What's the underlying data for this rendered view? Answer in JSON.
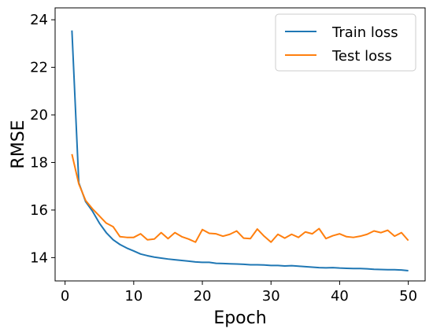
{
  "chart_data": {
    "type": "line",
    "title": "",
    "xlabel": "Epoch",
    "ylabel": "RMSE",
    "xlim": [
      -1.45,
      52.45
    ],
    "ylim": [
      13.02,
      24.5
    ],
    "xticks": [
      0,
      10,
      20,
      30,
      40,
      50
    ],
    "yticks": [
      14,
      16,
      18,
      20,
      22,
      24
    ],
    "grid": false,
    "legend": "top-right",
    "x": [
      1,
      2,
      3,
      4,
      5,
      6,
      7,
      8,
      9,
      10,
      11,
      12,
      13,
      14,
      15,
      16,
      17,
      18,
      19,
      20,
      21,
      22,
      23,
      24,
      25,
      26,
      27,
      28,
      29,
      30,
      31,
      32,
      33,
      34,
      35,
      36,
      37,
      38,
      39,
      40,
      41,
      42,
      43,
      44,
      45,
      46,
      47,
      48,
      49,
      50
    ],
    "series": [
      {
        "name": "Train loss",
        "color": "#1f77b4",
        "values": [
          23.55,
          17.15,
          16.35,
          15.95,
          15.45,
          15.05,
          14.75,
          14.55,
          14.4,
          14.28,
          14.15,
          14.08,
          14.02,
          13.98,
          13.94,
          13.91,
          13.88,
          13.85,
          13.82,
          13.8,
          13.8,
          13.76,
          13.75,
          13.74,
          13.73,
          13.72,
          13.7,
          13.7,
          13.69,
          13.67,
          13.67,
          13.65,
          13.66,
          13.64,
          13.62,
          13.6,
          13.58,
          13.57,
          13.58,
          13.56,
          13.55,
          13.54,
          13.54,
          13.53,
          13.51,
          13.5,
          13.49,
          13.49,
          13.48,
          13.45
        ]
      },
      {
        "name": "Test loss",
        "color": "#ff7f0e",
        "values": [
          18.35,
          17.1,
          16.4,
          16.05,
          15.75,
          15.45,
          15.3,
          14.88,
          14.85,
          14.85,
          15.0,
          14.75,
          14.78,
          15.05,
          14.8,
          15.05,
          14.88,
          14.78,
          14.65,
          15.18,
          15.02,
          15.0,
          14.9,
          14.98,
          15.12,
          14.82,
          14.8,
          15.2,
          14.9,
          14.65,
          14.98,
          14.82,
          14.98,
          14.85,
          15.08,
          15.0,
          15.22,
          14.8,
          14.92,
          15.0,
          14.88,
          14.85,
          14.9,
          14.98,
          15.12,
          15.05,
          15.15,
          14.9,
          15.05,
          14.72
        ]
      }
    ]
  }
}
